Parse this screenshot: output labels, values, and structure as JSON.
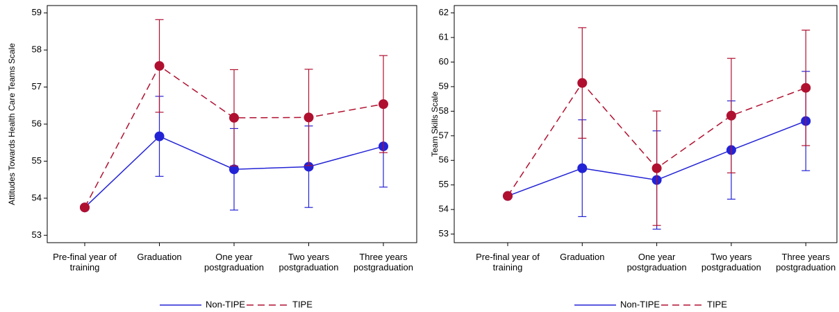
{
  "chart_data": [
    {
      "type": "line",
      "y_label": "Attitudes Towards Health Care Teams Scale",
      "categories": [
        "Pre-final year of training",
        "Graduation",
        "One year postgraduation",
        "Two years postgraduation",
        "Three years postgraduation"
      ],
      "series": [
        {
          "name": "Non-TIPE",
          "color": "#2323d6",
          "dashed": false,
          "values": [
            53.75,
            55.67,
            54.78,
            54.85,
            55.4
          ],
          "errors": [
            0,
            1.08,
            1.1,
            1.1,
            1.1
          ]
        },
        {
          "name": "TIPE",
          "color": "#b01030",
          "dashed": true,
          "values": [
            53.75,
            57.57,
            56.17,
            56.18,
            56.54
          ],
          "errors": [
            0,
            1.25,
            1.3,
            1.3,
            1.31
          ]
        }
      ],
      "ylim": [
        52.8,
        59.2
      ],
      "yticks": [
        53,
        54,
        55,
        56,
        57,
        58,
        59
      ]
    },
    {
      "type": "line",
      "y_label": "Team Skills Scale",
      "categories": [
        "Pre-final year of training",
        "Graduation",
        "One year postgraduation",
        "Two years postgraduation",
        "Three years postgraduation"
      ],
      "series": [
        {
          "name": "Non-TIPE",
          "color": "#2323d6",
          "dashed": false,
          "values": [
            54.55,
            55.68,
            55.2,
            56.42,
            57.6
          ],
          "errors": [
            0,
            1.97,
            2.0,
            2.0,
            2.02
          ]
        },
        {
          "name": "TIPE",
          "color": "#b01030",
          "dashed": true,
          "values": [
            54.55,
            59.15,
            55.68,
            57.82,
            58.95
          ],
          "errors": [
            0,
            2.25,
            2.33,
            2.33,
            2.35
          ]
        }
      ],
      "ylim": [
        52.65,
        62.3
      ],
      "yticks": [
        53,
        54,
        55,
        56,
        57,
        58,
        59,
        60,
        61,
        62
      ]
    }
  ]
}
